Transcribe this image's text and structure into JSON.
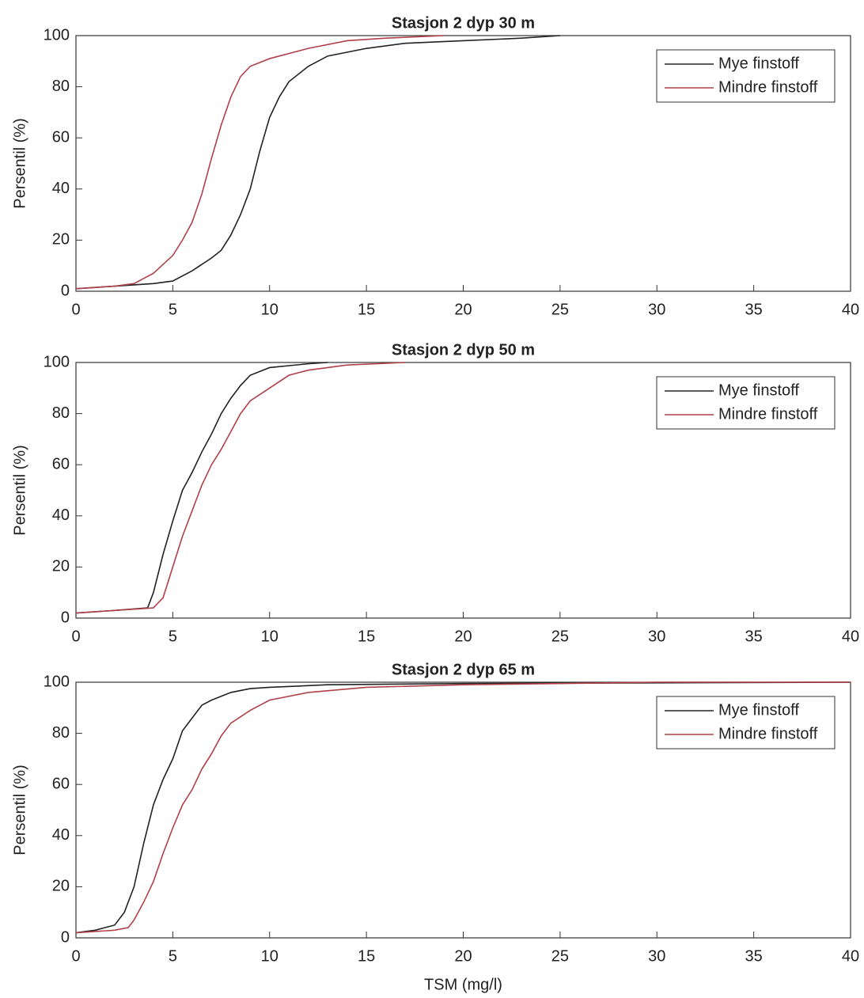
{
  "chart_data": [
    {
      "type": "line",
      "title": "Stasjon 2 dyp 30 m",
      "y_label": "Persentil (%)",
      "xlim": [
        0,
        40
      ],
      "ylim": [
        0,
        100
      ],
      "xticks": [
        0,
        5,
        10,
        15,
        20,
        25,
        30,
        35,
        40
      ],
      "yticks": [
        0,
        20,
        40,
        60,
        80,
        100
      ],
      "grid": false,
      "legend": "upper right",
      "series": [
        {
          "name": "Mye finstoff",
          "color": "#222222",
          "x": [
            0,
            2,
            4,
            5,
            6,
            7,
            7.5,
            8,
            8.5,
            9,
            9.5,
            10,
            10.5,
            11,
            12,
            13,
            15,
            17,
            20,
            23,
            25
          ],
          "values": [
            1,
            2,
            3,
            4,
            8,
            13,
            16,
            22,
            30,
            40,
            55,
            68,
            76,
            82,
            88,
            92,
            95,
            97,
            98,
            99,
            100
          ]
        },
        {
          "name": "Mindre finstoff",
          "color": "#b0404a",
          "x": [
            0,
            2,
            3,
            4,
            5,
            5.5,
            6,
            6.5,
            7,
            7.5,
            8,
            8.5,
            9,
            10,
            12,
            14,
            16,
            19
          ],
          "values": [
            1,
            2,
            3,
            7,
            14,
            20,
            27,
            38,
            52,
            65,
            76,
            84,
            88,
            91,
            95,
            98,
            99,
            100
          ]
        }
      ]
    },
    {
      "type": "line",
      "title": "Stasjon 2 dyp 50 m",
      "y_label": "Persentil (%)",
      "xlim": [
        0,
        40
      ],
      "ylim": [
        0,
        100
      ],
      "xticks": [
        0,
        5,
        10,
        15,
        20,
        25,
        30,
        35,
        40
      ],
      "yticks": [
        0,
        20,
        40,
        60,
        80,
        100
      ],
      "grid": false,
      "legend": "upper right",
      "series": [
        {
          "name": "Mye finstoff",
          "color": "#222222",
          "x": [
            0,
            2,
            3.7,
            4,
            4.5,
            5,
            5.5,
            6,
            6.5,
            7,
            7.5,
            8,
            8.5,
            9,
            10,
            12,
            13
          ],
          "values": [
            2,
            3,
            4,
            10,
            25,
            38,
            50,
            57,
            65,
            72,
            80,
            86,
            91,
            95,
            98,
            99.5,
            100
          ]
        },
        {
          "name": "Mindre finstoff",
          "color": "#b0404a",
          "x": [
            0,
            2,
            4,
            4.5,
            5,
            5.5,
            6,
            6.5,
            7,
            7.5,
            8,
            8.5,
            9,
            10,
            11,
            12,
            14,
            17
          ],
          "values": [
            2,
            3,
            4,
            8,
            20,
            32,
            42,
            52,
            60,
            66,
            73,
            80,
            85,
            90,
            95,
            97,
            99,
            100
          ]
        }
      ]
    },
    {
      "type": "line",
      "title": "Stasjon 2 dyp 65 m",
      "y_label": "Persentil (%)",
      "x_label": "TSM (mg/l)",
      "xlim": [
        0,
        40
      ],
      "ylim": [
        0,
        100
      ],
      "xticks": [
        0,
        5,
        10,
        15,
        20,
        25,
        30,
        35,
        40
      ],
      "yticks": [
        0,
        20,
        40,
        60,
        80,
        100
      ],
      "grid": false,
      "legend": "upper right",
      "series": [
        {
          "name": "Mye finstoff",
          "color": "#222222",
          "x": [
            0,
            1,
            2,
            2.5,
            3,
            3.5,
            4,
            4.5,
            5,
            5.5,
            6,
            6.5,
            7,
            8,
            9,
            10,
            13,
            20,
            40
          ],
          "values": [
            2,
            3,
            5,
            10,
            20,
            37,
            52,
            62,
            70,
            81,
            86,
            91,
            93,
            96,
            97.5,
            98,
            99,
            99.5,
            100
          ]
        },
        {
          "name": "Mindre finstoff",
          "color": "#b0404a",
          "x": [
            0,
            2,
            2.7,
            3,
            3.5,
            4,
            4.5,
            5,
            5.5,
            6,
            6.5,
            7,
            7.5,
            8,
            9,
            10,
            12,
            15,
            20,
            30,
            40
          ],
          "values": [
            2,
            3,
            4,
            7,
            14,
            22,
            33,
            43,
            52,
            58,
            66,
            72,
            79,
            84,
            89,
            93,
            96,
            98,
            99,
            100,
            100
          ]
        }
      ]
    }
  ]
}
